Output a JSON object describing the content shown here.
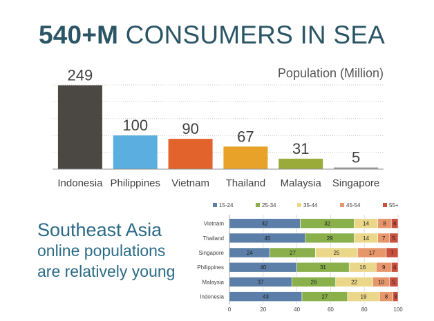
{
  "title": {
    "bold": "540+M",
    "rest": " CONSUMERS IN SEA"
  },
  "tagline": {
    "line1": "Southeast Asia",
    "line2": "online populations",
    "line3": "are relatively young"
  },
  "chart_data": [
    {
      "type": "bar",
      "title": "Population (Million)",
      "categories": [
        "Indonesia",
        "Philippines",
        "Vietnam",
        "Thailand",
        "Malaysia",
        "Singapore"
      ],
      "values": [
        249,
        100,
        90,
        67,
        31,
        5
      ],
      "colors": [
        "#4b4843",
        "#5aaee0",
        "#e2632c",
        "#e8a229",
        "#9aab3a",
        "#9c9c9c"
      ],
      "ylim": [
        0,
        250
      ],
      "grid": true,
      "data_labels": true
    },
    {
      "type": "bar",
      "orientation": "horizontal",
      "stacked": true,
      "categories": [
        "Vietnam",
        "Thailand",
        "Singapore",
        "Philippines",
        "Malaysia",
        "Indonesia"
      ],
      "series": [
        {
          "name": "15-24",
          "color": "#5b7fa8",
          "values": [
            42,
            45,
            24,
            40,
            37,
            43
          ]
        },
        {
          "name": "25-34",
          "color": "#8ab04c",
          "values": [
            32,
            29,
            27,
            31,
            26,
            27
          ]
        },
        {
          "name": "35-44",
          "color": "#ead78a",
          "values": [
            14,
            14,
            25,
            16,
            22,
            19
          ]
        },
        {
          "name": "45-54",
          "color": "#e7956a",
          "values": [
            8,
            7,
            17,
            9,
            10,
            8
          ]
        },
        {
          "name": "55+",
          "color": "#c8503f",
          "values": [
            4,
            5,
            7,
            4,
            5,
            3
          ]
        }
      ],
      "xlim": [
        0,
        100
      ],
      "xticks": [
        0,
        20,
        40,
        60,
        80,
        100
      ],
      "legend": "top",
      "grid": true,
      "data_labels": true
    }
  ]
}
